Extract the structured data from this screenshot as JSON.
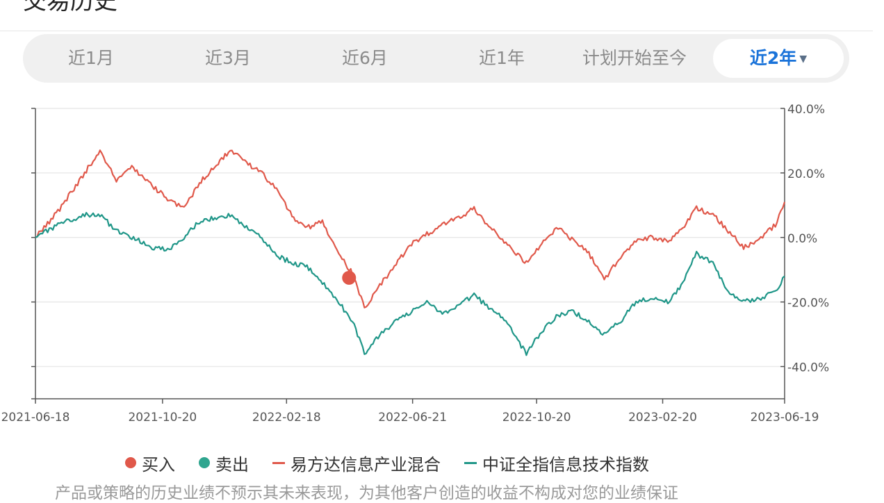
{
  "page": {
    "title": "交易历史",
    "disclaimer": "产品或策略的历史业绩不预示其未来表现，为其他客户创造的收益不构成对您的业绩保证"
  },
  "tabs": [
    {
      "label": "近1月"
    },
    {
      "label": "近3月"
    },
    {
      "label": "近6月"
    },
    {
      "label": "近1年"
    },
    {
      "label": "计划开始至今"
    },
    {
      "label": "近2年",
      "active": true
    }
  ],
  "legend": {
    "buy": "买入",
    "sell": "卖出",
    "fund": "易方达信息产业混合",
    "index": "中证全指信息技术指数"
  },
  "colors": {
    "fund": "#e0584a",
    "index": "#1f9688",
    "active_tab": "#1a73d9",
    "buy_marker": "#e0584a",
    "sell_marker": "#2fa58f"
  },
  "chart_data": {
    "type": "line",
    "x_ticks": [
      "2021-06-18",
      "2021-10-20",
      "2022-02-18",
      "2022-06-21",
      "2022-10-20",
      "2023-02-20",
      "2023-06-19"
    ],
    "y_ticks": [
      "40.0%",
      "20.0%",
      "0.0%",
      "-20.0%",
      "-40.0%"
    ],
    "ylim": [
      -50,
      40
    ],
    "grid": true,
    "legend_position": "bottom",
    "series": [
      {
        "name": "易方达信息产业混合",
        "color": "#e0584a",
        "points": [
          [
            "2021-06-18",
            0
          ],
          [
            "2021-07-10",
            8
          ],
          [
            "2021-08-05",
            20
          ],
          [
            "2021-08-20",
            27
          ],
          [
            "2021-09-05",
            18
          ],
          [
            "2021-09-20",
            22
          ],
          [
            "2021-10-10",
            16
          ],
          [
            "2021-10-25",
            12
          ],
          [
            "2021-11-10",
            9
          ],
          [
            "2021-11-25",
            17
          ],
          [
            "2021-12-10",
            22
          ],
          [
            "2021-12-25",
            27
          ],
          [
            "2022-01-10",
            23
          ],
          [
            "2022-01-25",
            20
          ],
          [
            "2022-02-10",
            14
          ],
          [
            "2022-02-25",
            6
          ],
          [
            "2022-03-10",
            3
          ],
          [
            "2022-03-25",
            5
          ],
          [
            "2022-04-10",
            -5
          ],
          [
            "2022-04-25",
            -12
          ],
          [
            "2022-05-05",
            -22
          ],
          [
            "2022-05-20",
            -15
          ],
          [
            "2022-06-05",
            -8
          ],
          [
            "2022-06-20",
            -2
          ],
          [
            "2022-07-05",
            1
          ],
          [
            "2022-07-20",
            4
          ],
          [
            "2022-08-05",
            6
          ],
          [
            "2022-08-20",
            9
          ],
          [
            "2022-09-05",
            3
          ],
          [
            "2022-09-20",
            -2
          ],
          [
            "2022-10-10",
            -8
          ],
          [
            "2022-10-25",
            -2
          ],
          [
            "2022-11-10",
            3
          ],
          [
            "2022-11-25",
            -1
          ],
          [
            "2022-12-10",
            -5
          ],
          [
            "2022-12-25",
            -13
          ],
          [
            "2023-01-10",
            -6
          ],
          [
            "2023-01-25",
            -1
          ],
          [
            "2023-02-10",
            0
          ],
          [
            "2023-02-25",
            -1
          ],
          [
            "2023-03-10",
            2
          ],
          [
            "2023-03-25",
            9
          ],
          [
            "2023-04-10",
            7
          ],
          [
            "2023-04-25",
            2
          ],
          [
            "2023-05-10",
            -3
          ],
          [
            "2023-05-25",
            -1
          ],
          [
            "2023-06-10",
            4
          ],
          [
            "2023-06-19",
            11
          ]
        ]
      },
      {
        "name": "中证全指信息技术指数",
        "color": "#1f9688",
        "points": [
          [
            "2021-06-18",
            0
          ],
          [
            "2021-07-10",
            4
          ],
          [
            "2021-08-05",
            7
          ],
          [
            "2021-08-20",
            7
          ],
          [
            "2021-09-05",
            2
          ],
          [
            "2021-09-20",
            0
          ],
          [
            "2021-10-10",
            -3
          ],
          [
            "2021-10-25",
            -4
          ],
          [
            "2021-11-10",
            0
          ],
          [
            "2021-11-25",
            5
          ],
          [
            "2021-12-10",
            6
          ],
          [
            "2021-12-25",
            7
          ],
          [
            "2022-01-10",
            3
          ],
          [
            "2022-01-25",
            0
          ],
          [
            "2022-02-10",
            -6
          ],
          [
            "2022-02-25",
            -8
          ],
          [
            "2022-03-10",
            -9
          ],
          [
            "2022-03-25",
            -14
          ],
          [
            "2022-04-10",
            -20
          ],
          [
            "2022-04-25",
            -27
          ],
          [
            "2022-05-05",
            -36
          ],
          [
            "2022-05-20",
            -30
          ],
          [
            "2022-06-05",
            -26
          ],
          [
            "2022-06-20",
            -23
          ],
          [
            "2022-07-05",
            -20
          ],
          [
            "2022-07-20",
            -24
          ],
          [
            "2022-08-05",
            -21
          ],
          [
            "2022-08-20",
            -18
          ],
          [
            "2022-09-05",
            -22
          ],
          [
            "2022-09-20",
            -26
          ],
          [
            "2022-10-10",
            -36
          ],
          [
            "2022-10-25",
            -29
          ],
          [
            "2022-11-10",
            -24
          ],
          [
            "2022-11-25",
            -23
          ],
          [
            "2022-12-10",
            -26
          ],
          [
            "2022-12-25",
            -30
          ],
          [
            "2023-01-10",
            -26
          ],
          [
            "2023-01-25",
            -20
          ],
          [
            "2023-02-10",
            -19
          ],
          [
            "2023-02-25",
            -20
          ],
          [
            "2023-03-10",
            -15
          ],
          [
            "2023-03-25",
            -5
          ],
          [
            "2023-04-10",
            -8
          ],
          [
            "2023-04-25",
            -17
          ],
          [
            "2023-05-10",
            -20
          ],
          [
            "2023-05-25",
            -19
          ],
          [
            "2023-06-10",
            -17
          ],
          [
            "2023-06-19",
            -12
          ]
        ]
      }
    ],
    "markers": [
      {
        "type": "buy",
        "label": "买入",
        "date": "2022-04-20",
        "value": -12.5
      }
    ]
  }
}
